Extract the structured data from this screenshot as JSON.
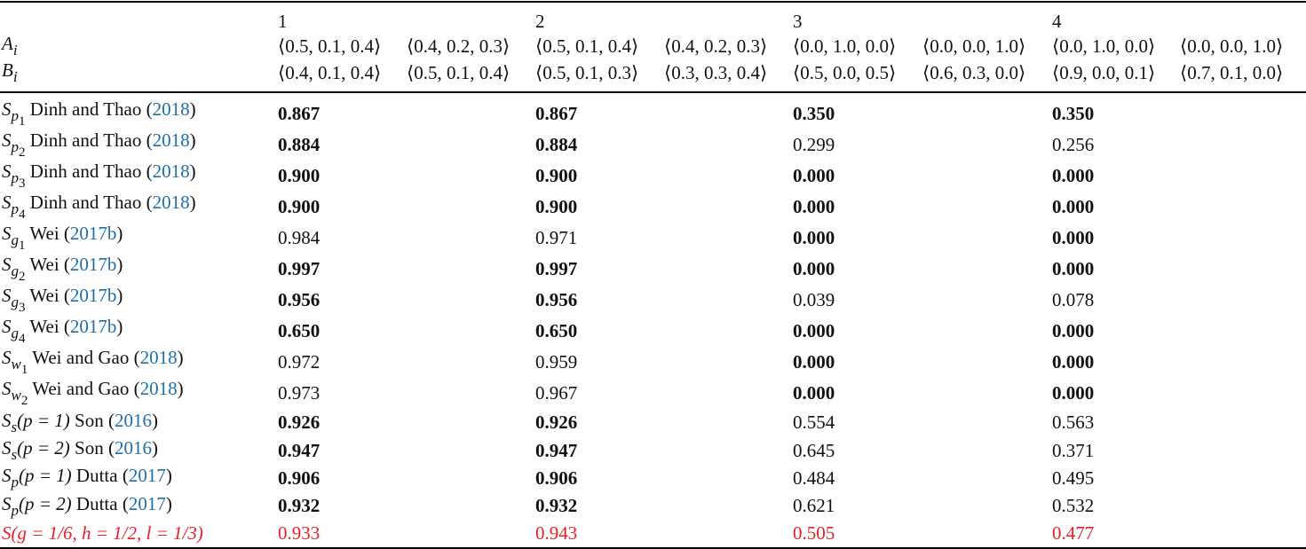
{
  "table": {
    "columns": [
      "1",
      "2",
      "3",
      "4"
    ],
    "header_rows": [
      {
        "label": {
          "symbol": "A",
          "sub": "i"
        },
        "cells": [
          "⟨0.5, 0.1, 0.4⟩",
          "⟨0.4, 0.2, 0.3⟩",
          "⟨0.5, 0.1, 0.4⟩",
          "⟨0.4, 0.2, 0.3⟩",
          "⟨0.0, 1.0, 0.0⟩",
          "⟨0.0, 0.0, 1.0⟩",
          "⟨0.0, 1.0, 0.0⟩",
          "⟨0.0, 0.0, 1.0⟩"
        ]
      },
      {
        "label": {
          "symbol": "B",
          "sub": "i"
        },
        "cells": [
          "⟨0.4, 0.1, 0.4⟩",
          "⟨0.5, 0.1, 0.4⟩",
          "⟨0.5, 0.1, 0.3⟩",
          "⟨0.3, 0.3, 0.4⟩",
          "⟨0.5, 0.0, 0.5⟩",
          "⟨0.6, 0.3, 0.0⟩",
          "⟨0.9, 0.0, 0.1⟩",
          "⟨0.7, 0.1, 0.0⟩"
        ]
      }
    ],
    "rows": [
      {
        "symbol": "S",
        "sub": "p",
        "index": "1",
        "author": "Dinh and Thao",
        "year": "2018",
        "values": [
          "0.867",
          "0.867",
          "0.350",
          "0.350"
        ],
        "bold": [
          true,
          true,
          true,
          true
        ]
      },
      {
        "symbol": "S",
        "sub": "p",
        "index": "2",
        "author": "Dinh and Thao",
        "year": "2018",
        "values": [
          "0.884",
          "0.884",
          "0.299",
          "0.256"
        ],
        "bold": [
          true,
          true,
          false,
          false
        ]
      },
      {
        "symbol": "S",
        "sub": "p",
        "index": "3",
        "author": "Dinh and Thao",
        "year": "2018",
        "values": [
          "0.900",
          "0.900",
          "0.000",
          "0.000"
        ],
        "bold": [
          true,
          true,
          true,
          true
        ]
      },
      {
        "symbol": "S",
        "sub": "p",
        "index": "4",
        "author": "Dinh and Thao",
        "year": "2018",
        "values": [
          "0.900",
          "0.900",
          "0.000",
          "0.000"
        ],
        "bold": [
          true,
          true,
          true,
          true
        ]
      },
      {
        "symbol": "S",
        "sub": "g",
        "index": "1",
        "author": "Wei",
        "year": "2017b",
        "values": [
          "0.984",
          "0.971",
          "0.000",
          "0.000"
        ],
        "bold": [
          false,
          false,
          true,
          true
        ]
      },
      {
        "symbol": "S",
        "sub": "g",
        "index": "2",
        "author": "Wei",
        "year": "2017b",
        "values": [
          "0.997",
          "0.997",
          "0.000",
          "0.000"
        ],
        "bold": [
          true,
          true,
          true,
          true
        ]
      },
      {
        "symbol": "S",
        "sub": "g",
        "index": "3",
        "author": "Wei",
        "year": "2017b",
        "values": [
          "0.956",
          "0.956",
          "0.039",
          "0.078"
        ],
        "bold": [
          true,
          true,
          false,
          false
        ]
      },
      {
        "symbol": "S",
        "sub": "g",
        "index": "4",
        "author": "Wei",
        "year": "2017b",
        "values": [
          "0.650",
          "0.650",
          "0.000",
          "0.000"
        ],
        "bold": [
          true,
          true,
          true,
          true
        ]
      },
      {
        "symbol": "S",
        "sub": "w",
        "index": "1",
        "author": "Wei and Gao",
        "year": "2018",
        "values": [
          "0.972",
          "0.959",
          "0.000",
          "0.000"
        ],
        "bold": [
          false,
          false,
          true,
          true
        ]
      },
      {
        "symbol": "S",
        "sub": "w",
        "index": "2",
        "author": "Wei and Gao",
        "year": "2018",
        "values": [
          "0.973",
          "0.967",
          "0.000",
          "0.000"
        ],
        "bold": [
          false,
          false,
          true,
          true
        ]
      },
      {
        "symbol": "S",
        "sub": "s",
        "args": "(p = 1)",
        "author": "Son",
        "year": "2016",
        "values": [
          "0.926",
          "0.926",
          "0.554",
          "0.563"
        ],
        "bold": [
          true,
          true,
          false,
          false
        ]
      },
      {
        "symbol": "S",
        "sub": "s",
        "args": "(p = 2)",
        "author": "Son",
        "year": "2016",
        "values": [
          "0.947",
          "0.947",
          "0.645",
          "0.371"
        ],
        "bold": [
          true,
          true,
          false,
          false
        ]
      },
      {
        "symbol": "S",
        "sub": "p",
        "args": "(p = 1)",
        "author": "Dutta",
        "year": "2017",
        "values": [
          "0.906",
          "0.906",
          "0.484",
          "0.495"
        ],
        "bold": [
          true,
          true,
          false,
          false
        ]
      },
      {
        "symbol": "S",
        "sub": "p",
        "args": "(p = 2)",
        "author": "Dutta",
        "year": "2017",
        "values": [
          "0.932",
          "0.932",
          "0.621",
          "0.532"
        ],
        "bold": [
          true,
          true,
          false,
          false
        ]
      },
      {
        "symbol": "S",
        "args": "(g = 1/6, h = 1/2, l = 1/3)",
        "values": [
          "0.933",
          "0.943",
          "0.505",
          "0.477"
        ],
        "bold": [
          false,
          false,
          false,
          false
        ],
        "color": "#e5202a"
      }
    ]
  }
}
